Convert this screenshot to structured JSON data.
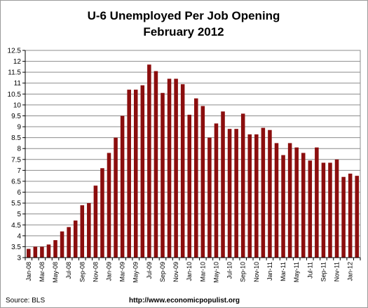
{
  "chart_data": {
    "type": "bar",
    "title": "U-6 Unemployed Per Job Opening",
    "subtitle": "February 2012",
    "ylim": [
      3,
      12.5
    ],
    "yticks": [
      "3",
      "3.5",
      "4",
      "4.5",
      "5",
      "5.5",
      "6",
      "6.5",
      "7",
      "7.5",
      "8",
      "8.5",
      "9",
      "9.5",
      "10",
      "10.5",
      "11",
      "11.5",
      "12",
      "12.5"
    ],
    "grid": true,
    "bar_color": "#8b0e0e",
    "categories": [
      "Jan-08",
      "Feb-08",
      "Mar-08",
      "Apr-08",
      "May-08",
      "Jun-08",
      "Jul-08",
      "Aug-08",
      "Sep-08",
      "Oct-08",
      "Nov-08",
      "Dec-08",
      "Jan-09",
      "Feb-09",
      "Mar-09",
      "Apr-09",
      "May-09",
      "Jun-09",
      "Jul-09",
      "Aug-09",
      "Sep-09",
      "Oct-09",
      "Nov-09",
      "Dec-09",
      "Jan-10",
      "Feb-10",
      "Mar-10",
      "Apr-10",
      "May-10",
      "Jun-10",
      "Jul-10",
      "Aug-10",
      "Sep-10",
      "Oct-10",
      "Nov-10",
      "Dec-10",
      "Jan-11",
      "Feb-11",
      "Mar-11",
      "Apr-11",
      "May-11",
      "Jun-11",
      "Jul-11",
      "Aug-11",
      "Sep-11",
      "Oct-11",
      "Nov-11",
      "Dec-11",
      "Jan-12",
      "Feb-12"
    ],
    "xtick_labels": [
      "Jan-08",
      "Mar-08",
      "May-08",
      "Jul-08",
      "Sep-08",
      "Nov-08",
      "Jan-09",
      "Mar-09",
      "May-09",
      "Jul-09",
      "Sep-09",
      "Nov-09",
      "Jan-10",
      "Mar-10",
      "May-10",
      "Jul-10",
      "Sep-10",
      "Nov-10",
      "Jan-11",
      "Mar-11",
      "May-11",
      "Jul-11",
      "Sep-11",
      "Nov-11",
      "Jan-12"
    ],
    "values": [
      3.4,
      3.5,
      3.5,
      3.6,
      3.8,
      4.2,
      4.4,
      4.7,
      5.4,
      5.5,
      6.3,
      7.1,
      7.8,
      8.5,
      9.5,
      10.7,
      10.7,
      10.9,
      11.85,
      11.55,
      10.55,
      11.2,
      11.2,
      10.95,
      9.55,
      10.3,
      9.95,
      8.5,
      9.15,
      9.7,
      8.9,
      8.9,
      9.6,
      8.65,
      8.65,
      8.95,
      8.85,
      8.25,
      7.7,
      8.25,
      8.05,
      7.8,
      7.45,
      8.05,
      7.35,
      7.35,
      7.5,
      6.7,
      6.85,
      6.75
    ]
  },
  "footer": {
    "source": "Source:  BLS",
    "url": "http://www.economicpopulist.org"
  }
}
